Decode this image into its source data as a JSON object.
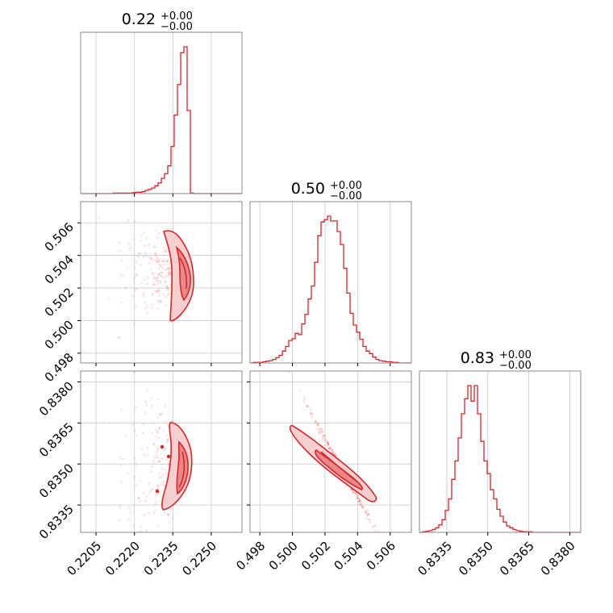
{
  "chart_data": {
    "type": "corner",
    "colors": {
      "main": "#d62728"
    },
    "grid": true,
    "parameters": [
      {
        "title_value": "0.22",
        "title_plus": "+0.00",
        "title_minus": "−0.00",
        "range": [
          0.2199,
          0.2262
        ],
        "ticks": [
          0.2205,
          0.222,
          0.2235,
          0.225
        ],
        "tick_labels": [
          "0.2205",
          "0.2220",
          "0.2235",
          "0.2250"
        ],
        "hist": {
          "edges_start": 0.2199,
          "edges_step": 0.000126,
          "counts": [
            0,
            0,
            0,
            0,
            0,
            0,
            0,
            0,
            0,
            0,
            1,
            1,
            1,
            1,
            1,
            1,
            2,
            3,
            3,
            4,
            7,
            9,
            12,
            17,
            23,
            33,
            43,
            60,
            102,
            170,
            236,
            305,
            318,
            180,
            1,
            0,
            0,
            0,
            0,
            0,
            0,
            0,
            0,
            0,
            0,
            0,
            0,
            0,
            0,
            0
          ]
        }
      },
      {
        "title_value": "0.50",
        "title_plus": "+0.00",
        "title_minus": "−0.00",
        "range": [
          0.4974,
          0.5073
        ],
        "ticks": [
          0.498,
          0.5,
          0.502,
          0.504,
          0.506
        ],
        "tick_labels": [
          "0.498",
          "0.500",
          "0.502",
          "0.504",
          "0.506"
        ],
        "hist": {
          "edges_start": 0.4974,
          "edges_step": 0.000198,
          "counts": [
            0,
            1,
            1,
            1,
            2,
            3,
            4,
            6,
            9,
            13,
            20,
            28,
            38,
            41,
            50,
            48,
            66,
            82,
            108,
            130,
            170,
            215,
            238,
            242,
            248,
            240,
            240,
            222,
            200,
            160,
            118,
            84,
            64,
            52,
            40,
            28,
            20,
            16,
            10,
            6,
            4,
            3,
            2,
            2,
            1,
            1,
            0,
            0,
            0,
            0
          ]
        }
      },
      {
        "title_value": "0.83",
        "title_plus": "+0.00",
        "title_minus": "−0.00",
        "range": [
          0.8325,
          0.8384
        ],
        "ticks": [
          0.8335,
          0.835,
          0.8365,
          0.838
        ],
        "tick_labels": [
          "0.8335",
          "0.8350",
          "0.8365",
          "0.8380"
        ],
        "hist": {
          "edges_start": 0.8325,
          "edges_step": 0.000118,
          "counts": [
            0,
            1,
            2,
            3,
            5,
            8,
            13,
            22,
            38,
            58,
            92,
            124,
            164,
            206,
            232,
            255,
            228,
            255,
            206,
            158,
            124,
            102,
            74,
            58,
            40,
            28,
            18,
            11,
            8,
            5,
            3,
            2,
            1,
            1,
            1,
            0,
            0,
            0,
            0,
            0,
            0,
            0,
            0,
            0,
            0,
            0,
            0,
            0,
            0,
            0
          ]
        }
      }
    ]
  }
}
